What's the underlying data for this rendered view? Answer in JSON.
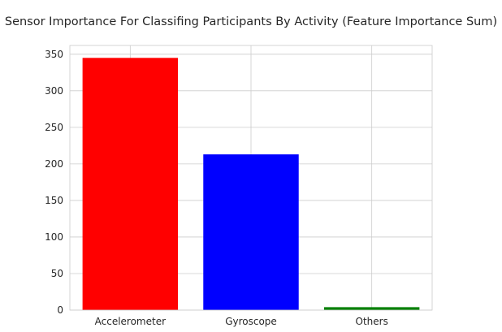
{
  "chart_data": {
    "type": "bar",
    "title": "Sensor Importance For Classifing Participants By Activity (Feature Importance Sum)",
    "xlabel": "",
    "ylabel": "",
    "categories": [
      "Accelerometer",
      "Gyroscope",
      "Others"
    ],
    "values": [
      345,
      213,
      4
    ],
    "bar_colors": [
      "#ff0000",
      "#0000ff",
      "#008000"
    ],
    "ylim": [
      0,
      362
    ],
    "yticks": [
      0,
      50,
      100,
      150,
      200,
      250,
      300,
      350
    ],
    "grid": true,
    "legend": "none"
  }
}
